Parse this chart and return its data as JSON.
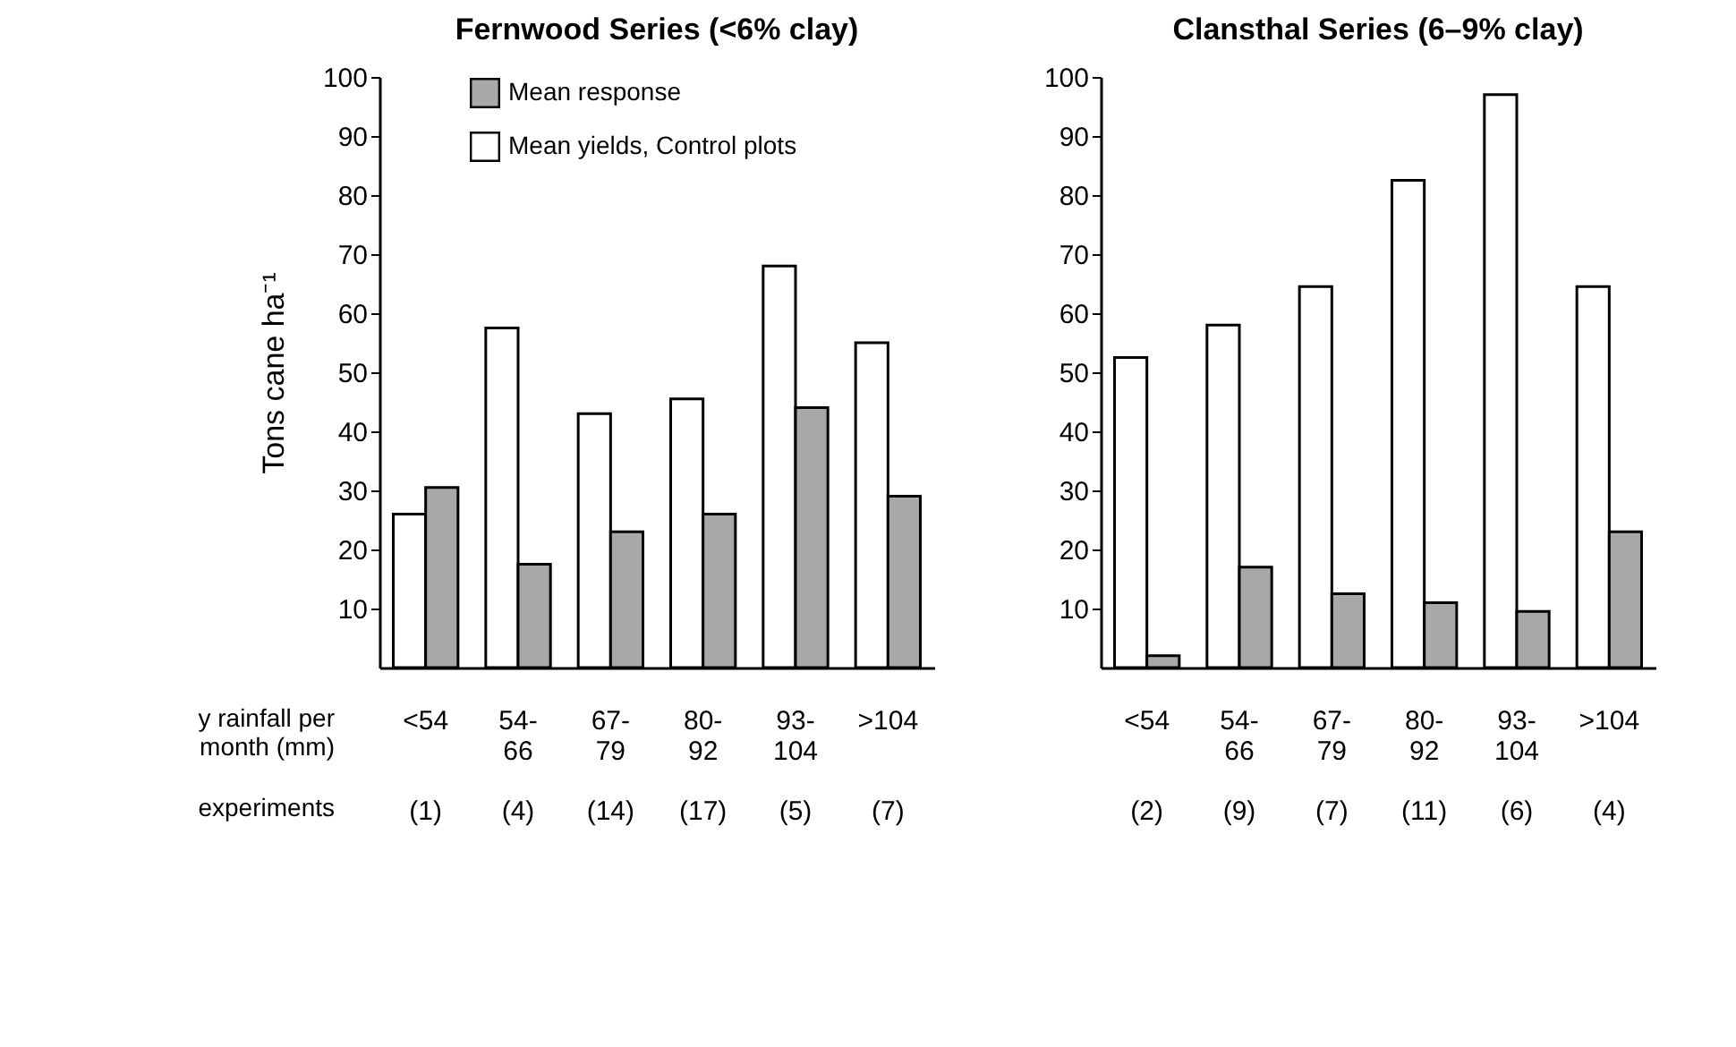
{
  "chart_data": [
    {
      "type": "bar",
      "title": "Fernwood Series (<6% clay)",
      "ylabel": "Tons cane ha⁻¹",
      "categories": [
        "<54",
        "54-\n66",
        "67-\n79",
        "80-\n92",
        "93-\n104",
        ">104"
      ],
      "series": [
        {
          "name": "Mean yields, Control plots",
          "color": "#ffffff",
          "values": [
            26,
            57.5,
            43,
            45.5,
            68,
            55
          ]
        },
        {
          "name": "Mean response",
          "color": "#a8a8a8",
          "values": [
            30.5,
            17.5,
            23,
            26,
            44,
            29
          ]
        }
      ],
      "ylim": [
        0,
        100
      ],
      "yticks": [
        10,
        20,
        30,
        40,
        50,
        60,
        70,
        80,
        90,
        100
      ],
      "legend": "top left",
      "annotations": [
        "y rainfall per\nmonth (mm)",
        "experiments",
        "(1)",
        "(4)",
        "(14)",
        "(17)",
        "(5)",
        "(7)"
      ]
    },
    {
      "type": "bar",
      "title": "Clansthal Series (6–9% clay)",
      "categories": [
        "<54",
        "54-\n66",
        "67-\n79",
        "80-\n92",
        "93-\n104",
        ">104"
      ],
      "series": [
        {
          "color": "#ffffff",
          "values": [
            52.5,
            58,
            64.5,
            82.5,
            97,
            64.5
          ]
        },
        {
          "color": "#a8a8a8",
          "values": [
            2,
            17,
            12.5,
            11,
            9.5,
            23
          ]
        }
      ],
      "ylim": [
        0,
        100
      ],
      "yticks": [
        10,
        20,
        30,
        40,
        50,
        60,
        70,
        80,
        90,
        100
      ],
      "annotations": [
        "(2)",
        "(9)",
        "(7)",
        "(11)",
        "(6)",
        "(4)"
      ]
    }
  ]
}
